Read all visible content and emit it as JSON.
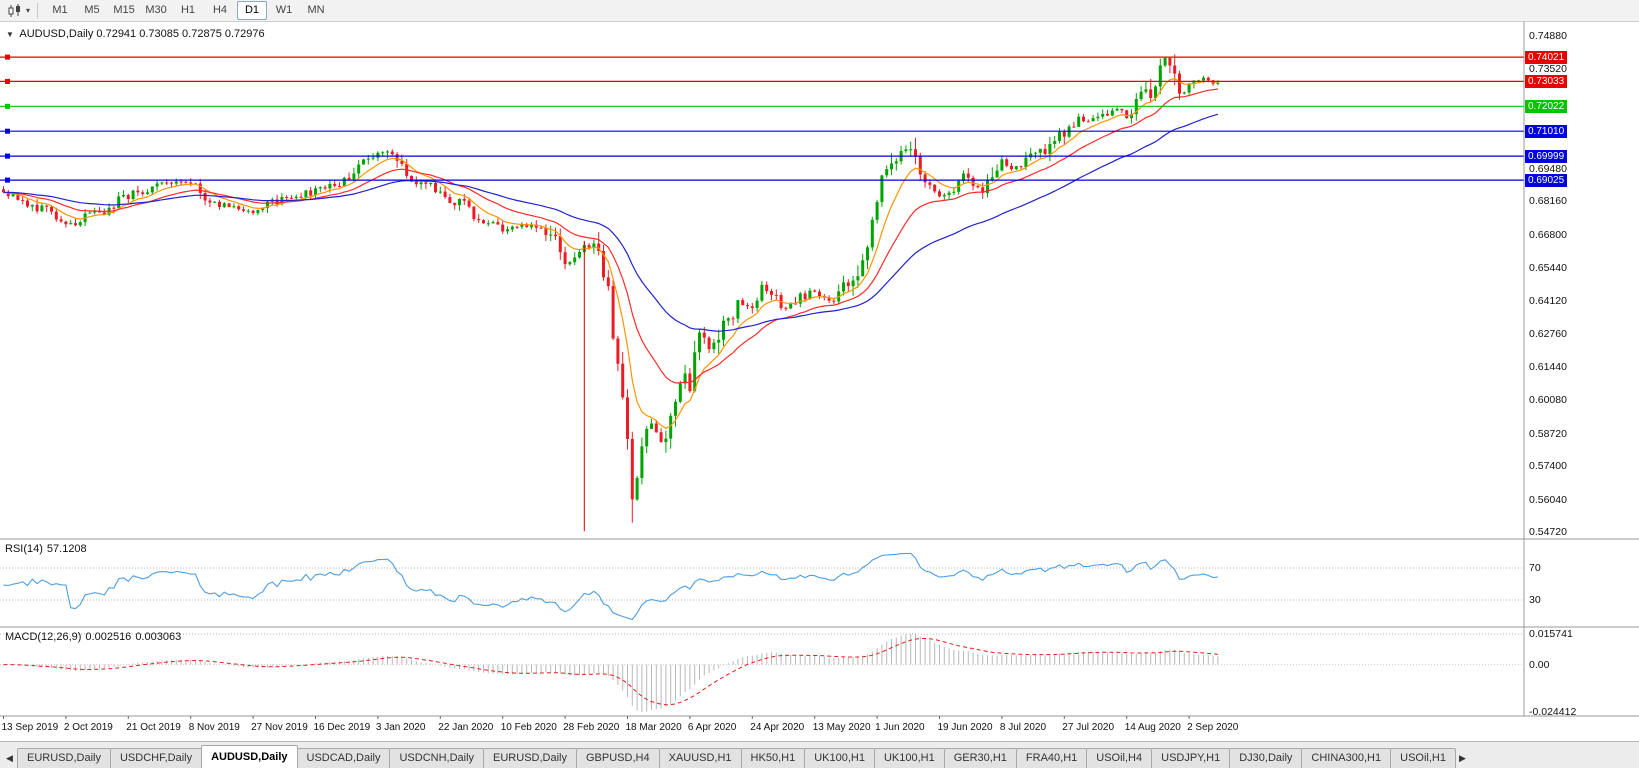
{
  "icons": {
    "chart_type_caret": "▾",
    "collapse_triangle": "▼",
    "tab_scroll_left": "◀",
    "tab_scroll_right": "▶"
  },
  "toolbar": {
    "timeframes": [
      "M1",
      "M5",
      "M15",
      "M30",
      "H1",
      "H4",
      "D1",
      "W1",
      "MN"
    ],
    "active_timeframe": "D1"
  },
  "chart": {
    "symbol": "AUDUSD,Daily",
    "ohlc": "0.72941 0.73085 0.72875 0.72976"
  },
  "price_axis": {
    "labels": [
      "0.74880",
      "0.73520",
      "0.72160",
      "0.70800",
      "0.69480",
      "0.68160",
      "0.66800",
      "0.65440",
      "0.64120",
      "0.62760",
      "0.61440",
      "0.60080",
      "0.58720",
      "0.57400",
      "0.56040",
      "0.54720"
    ]
  },
  "hlines": [
    {
      "price": 0.74021,
      "label": "0.74021",
      "color": "#e80000"
    },
    {
      "price": 0.73033,
      "label": "0.73033",
      "color": "#e80000"
    },
    {
      "price": 0.72022,
      "label": "0.72022",
      "color": "#00c400"
    },
    {
      "price": 0.7101,
      "label": "0.71010",
      "color": "#0000e0"
    },
    {
      "price": 0.69999,
      "label": "0.69999",
      "color": "#0000e0"
    },
    {
      "price": 0.69025,
      "label": "0.69025",
      "color": "#0000e0"
    }
  ],
  "rsi": {
    "name": "RSI(14)",
    "value": "57.1208",
    "levels": [
      "70",
      "30"
    ],
    "line_color": "#4d9ee0"
  },
  "macd": {
    "name": "MACD(12,26,9)",
    "value_main": "0.002516",
    "value_signal": "0.003063",
    "axis_max": "0.015741",
    "axis_zero": "0.00",
    "axis_min": "-0.024412",
    "histogram_color": "#b8b8b8",
    "signal_color": "#e02020"
  },
  "date_axis": {
    "labels": [
      "13 Sep 2019",
      "2 Oct 2019",
      "21 Oct 2019",
      "8 Nov 2019",
      "27 Nov 2019",
      "16 Dec 2019",
      "3 Jan 2020",
      "22 Jan 2020",
      "10 Feb 2020",
      "28 Feb 2020",
      "18 Mar 2020",
      "6 Apr 2020",
      "24 Apr 2020",
      "13 May 2020",
      "1 Jun 2020",
      "19 Jun 2020",
      "8 Jul 2020",
      "27 Jul 2020",
      "14 Aug 2020",
      "2 Sep 2020"
    ],
    "candles_per_label": 13
  },
  "tabs": {
    "items": [
      "EURUSD,Daily",
      "USDCHF,Daily",
      "AUDUSD,Daily",
      "USDCAD,Daily",
      "USDCNH,Daily",
      "EURUSD,Daily",
      "GBPUSD,H4",
      "XAUUSD,H1",
      "HK50,H1",
      "UK100,H1",
      "UK100,H1",
      "GER30,H1",
      "FRA40,H1",
      "USOil,H4",
      "USDJPY,H1",
      "DJ30,Daily",
      "CHINA300,H1",
      "USOil,H1"
    ],
    "active_index": 2
  },
  "chart_data": {
    "type": "candlestick",
    "symbol": "AUDUSD",
    "timeframe": "Daily",
    "last_ohlc": {
      "open": 0.72941,
      "high": 0.73085,
      "low": 0.72875,
      "close": 0.72976
    },
    "visible_range": {
      "price_min": 0.5472,
      "price_max": 0.7488,
      "date_start": "13 Sep 2019",
      "date_end": "2 Sep 2020"
    },
    "candle_count": 254,
    "up_color": "#00a400",
    "down_color": "#ed1c24",
    "noise_seed": 42,
    "price_path_anchors": [
      [
        0,
        0.686
      ],
      [
        5,
        0.6815
      ],
      [
        9,
        0.677
      ],
      [
        13,
        0.6715
      ],
      [
        16,
        0.6745
      ],
      [
        21,
        0.6775
      ],
      [
        26,
        0.684
      ],
      [
        31,
        0.6875
      ],
      [
        36,
        0.6895
      ],
      [
        39,
        0.688
      ],
      [
        43,
        0.6825
      ],
      [
        47,
        0.679
      ],
      [
        52,
        0.678
      ],
      [
        57,
        0.6815
      ],
      [
        61,
        0.684
      ],
      [
        65,
        0.6855
      ],
      [
        70,
        0.6895
      ],
      [
        74,
        0.696
      ],
      [
        78,
        0.702
      ],
      [
        81,
        0.699
      ],
      [
        84,
        0.6925
      ],
      [
        88,
        0.688
      ],
      [
        91,
        0.6845
      ],
      [
        95,
        0.681
      ],
      [
        99,
        0.6745
      ],
      [
        104,
        0.67
      ],
      [
        108,
        0.6725
      ],
      [
        112,
        0.671
      ],
      [
        115,
        0.6655
      ],
      [
        117,
        0.6555
      ],
      [
        120,
        0.6615
      ],
      [
        122,
        0.664
      ],
      [
        124,
        0.657
      ],
      [
        126,
        0.643
      ],
      [
        128,
        0.618
      ],
      [
        130,
        0.585
      ],
      [
        131,
        0.556
      ],
      [
        133,
        0.58
      ],
      [
        135,
        0.592
      ],
      [
        137,
        0.583
      ],
      [
        139,
        0.596
      ],
      [
        141,
        0.605
      ],
      [
        143,
        0.609
      ],
      [
        145,
        0.63
      ],
      [
        147,
        0.621
      ],
      [
        150,
        0.631
      ],
      [
        153,
        0.64
      ],
      [
        156,
        0.637
      ],
      [
        158,
        0.645
      ],
      [
        161,
        0.642
      ],
      [
        163,
        0.638
      ],
      [
        166,
        0.643
      ],
      [
        169,
        0.645
      ],
      [
        172,
        0.641
      ],
      [
        175,
        0.648
      ],
      [
        178,
        0.655
      ],
      [
        180,
        0.665
      ],
      [
        182,
        0.682
      ],
      [
        184,
        0.693
      ],
      [
        186,
        0.699
      ],
      [
        188,
        0.7035
      ],
      [
        190,
        0.696
      ],
      [
        192,
        0.688
      ],
      [
        195,
        0.684
      ],
      [
        198,
        0.688
      ],
      [
        200,
        0.693
      ],
      [
        202,
        0.687
      ],
      [
        204,
        0.686
      ],
      [
        206,
        0.692
      ],
      [
        208,
        0.698
      ],
      [
        210,
        0.694
      ],
      [
        213,
        0.698
      ],
      [
        216,
        0.701
      ],
      [
        219,
        0.706
      ],
      [
        221,
        0.711
      ],
      [
        224,
        0.715
      ],
      [
        227,
        0.714
      ],
      [
        230,
        0.718
      ],
      [
        232,
        0.719
      ],
      [
        234,
        0.7165
      ],
      [
        236,
        0.721
      ],
      [
        239,
        0.727
      ],
      [
        242,
        0.739
      ],
      [
        244,
        0.73
      ],
      [
        246,
        0.7255
      ],
      [
        248,
        0.73
      ],
      [
        250,
        0.731
      ],
      [
        252,
        0.72941
      ],
      [
        253,
        0.72976
      ]
    ],
    "crash_low": {
      "index": 131,
      "price": 0.551
    },
    "moving_averages": [
      {
        "period": 8,
        "method": "ema",
        "color": "#ff9500"
      },
      {
        "period": 20,
        "method": "ema",
        "color": "#ff2a2a"
      },
      {
        "period": 45,
        "method": "ema",
        "color": "#2222cc"
      }
    ],
    "objects": [
      {
        "type": "vertical-segment",
        "index": 121,
        "price_from": 0.6655,
        "price_to": 0.5475,
        "color": "#d00000"
      }
    ],
    "indicators": [
      {
        "name": "RSI",
        "period": 14,
        "current": 57.1208,
        "levels": [
          70,
          30
        ]
      },
      {
        "name": "MACD",
        "params": [
          12,
          26,
          9
        ],
        "current_main": 0.002516,
        "current_signal": 0.003063,
        "display_max": 0.015741,
        "display_min": -0.024412
      }
    ]
  }
}
